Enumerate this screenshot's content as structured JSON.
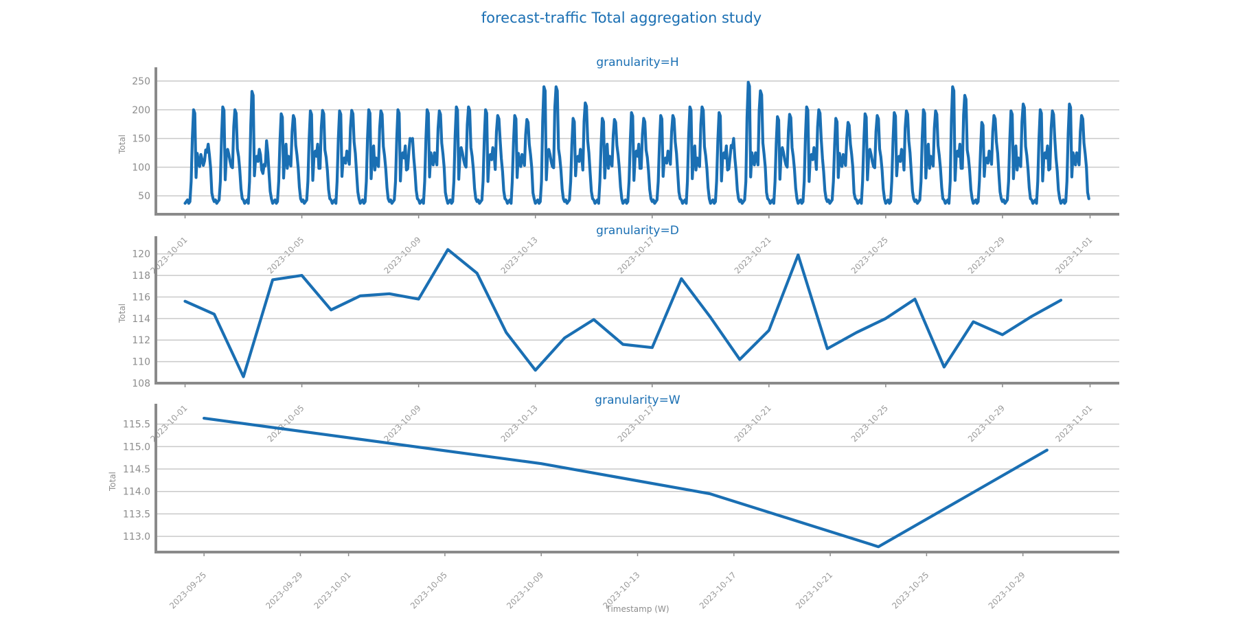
{
  "page": {
    "title": "forecast-traffic Total aggregation study"
  },
  "colors": {
    "series": "#1a6fb3",
    "grid": "#c9c9c9",
    "axis": "#8a8a8a",
    "text": "#8c8c8c"
  },
  "chart_data": [
    {
      "type": "line",
      "title": "granularity=H",
      "xlabel": "",
      "ylabel": "Total",
      "xlim": [
        "2023-09-30",
        "2023-11-02"
      ],
      "ylim": [
        18,
        262
      ],
      "yticks": [
        50,
        100,
        150,
        200,
        250
      ],
      "xticks": [
        "2023-10-01",
        "2023-10-05",
        "2023-10-09",
        "2023-10-13",
        "2023-10-17",
        "2023-10-21",
        "2023-10-25",
        "2023-10-29",
        "2023-11-01"
      ],
      "xtick_labels": [
        "2023-10-01",
        "2023-10-05",
        "2023-10-09",
        "2023-10-13",
        "2023-10-17",
        "2023-10-21",
        "2023-10-25",
        "2023-10-29",
        "2023-11-01"
      ],
      "grid": true,
      "series": [
        {
          "x_start": "2023-10-01T00:00",
          "x_step_hours": 1,
          "daily_peaks": [
            [
              200,
              130
            ],
            [
              205,
              200
            ],
            [
              232,
              105
            ],
            [
              193,
              190
            ],
            [
              198,
              199
            ],
            [
              198,
              199
            ],
            [
              200,
              198
            ],
            [
              200,
              150
            ],
            [
              200,
              198
            ],
            [
              205,
              205
            ],
            [
              200,
              190
            ],
            [
              190,
              183
            ],
            [
              240,
              240
            ],
            [
              185,
              212
            ],
            [
              185,
              183
            ],
            [
              195,
              185
            ],
            [
              190,
              190
            ],
            [
              205,
              205
            ],
            [
              195,
              138
            ],
            [
              248,
              233
            ],
            [
              188,
              192
            ],
            [
              205,
              200
            ],
            [
              185,
              178
            ],
            [
              193,
              190
            ],
            [
              195,
              198
            ],
            [
              200,
              198
            ],
            [
              240,
              225
            ],
            [
              178,
              190
            ],
            [
              198,
              210
            ],
            [
              200,
              198
            ],
            [
              210,
              190
            ]
          ],
          "night_low": 40,
          "values": []
        }
      ]
    },
    {
      "type": "line",
      "title": "granularity=D",
      "xlabel": "",
      "ylabel": "Total",
      "xlim": [
        "2023-09-30",
        "2023-11-02"
      ],
      "ylim": [
        108,
        121
      ],
      "yticks": [
        108,
        110,
        112,
        114,
        116,
        118,
        120
      ],
      "xticks": [
        "2023-10-01",
        "2023-10-05",
        "2023-10-09",
        "2023-10-13",
        "2023-10-17",
        "2023-10-21",
        "2023-10-25",
        "2023-10-29",
        "2023-11-01"
      ],
      "xtick_labels": [
        "2023-10-01",
        "2023-10-05",
        "2023-10-09",
        "2023-10-13",
        "2023-10-17",
        "2023-10-21",
        "2023-10-25",
        "2023-10-29",
        "2023-11-01"
      ],
      "grid": true,
      "series": [
        {
          "x": [
            "2023-10-01",
            "2023-10-02",
            "2023-10-03",
            "2023-10-04",
            "2023-10-05",
            "2023-10-06",
            "2023-10-07",
            "2023-10-08",
            "2023-10-09",
            "2023-10-10",
            "2023-10-11",
            "2023-10-12",
            "2023-10-13",
            "2023-10-14",
            "2023-10-15",
            "2023-10-16",
            "2023-10-17",
            "2023-10-18",
            "2023-10-19",
            "2023-10-20",
            "2023-10-21",
            "2023-10-22",
            "2023-10-23",
            "2023-10-24",
            "2023-10-25",
            "2023-10-26",
            "2023-10-27",
            "2023-10-28",
            "2023-10-29",
            "2023-10-30",
            "2023-10-31"
          ],
          "values": [
            115.6,
            114.4,
            108.6,
            117.6,
            118.0,
            114.8,
            116.1,
            116.3,
            115.8,
            120.4,
            118.2,
            112.7,
            109.2,
            112.2,
            113.9,
            111.6,
            111.3,
            117.7,
            114.1,
            110.2,
            112.9,
            119.9,
            111.2,
            112.7,
            114.0,
            115.8,
            109.5,
            113.7,
            112.5,
            114.2,
            115.7
          ]
        }
      ]
    },
    {
      "type": "line",
      "title": "granularity=W",
      "xlabel": "Timestamp (W)",
      "ylabel": "Total",
      "xlim": [
        "2023-09-23",
        "2023-11-02"
      ],
      "ylim": [
        112.65,
        115.8
      ],
      "yticks": [
        113.0,
        113.5,
        114.0,
        114.5,
        115.0,
        115.5
      ],
      "ytick_labels": [
        "113.0",
        "113.5",
        "114.0",
        "114.5",
        "115.0",
        "115.5"
      ],
      "xticks": [
        "2023-09-25",
        "2023-09-29",
        "2023-10-01",
        "2023-10-05",
        "2023-10-09",
        "2023-10-13",
        "2023-10-17",
        "2023-10-21",
        "2023-10-25",
        "2023-10-29"
      ],
      "xtick_labels": [
        "2023-09-25",
        "2023-09-29",
        "2023-10-01",
        "2023-10-05",
        "2023-10-09",
        "2023-10-13",
        "2023-10-17",
        "2023-10-21",
        "2023-10-25",
        "2023-10-29"
      ],
      "grid": true,
      "series": [
        {
          "x": [
            "2023-09-25",
            "2023-10-09",
            "2023-10-16",
            "2023-10-23",
            "2023-10-30"
          ],
          "values": [
            115.63,
            114.62,
            113.95,
            112.77,
            114.92
          ]
        }
      ]
    }
  ]
}
